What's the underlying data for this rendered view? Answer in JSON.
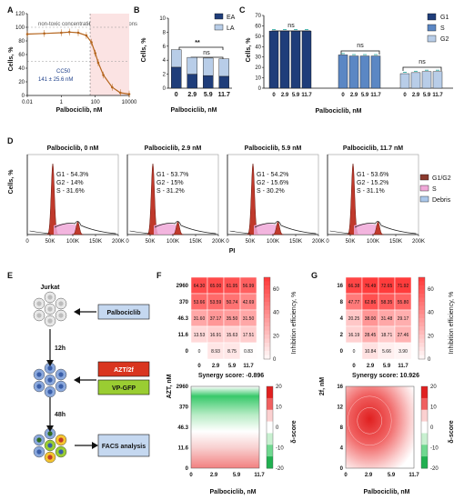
{
  "panels": {
    "A": {
      "letter": "A",
      "ylabel": "Cells, %",
      "xlabel": "Palbociclib, nM",
      "yticks": [
        "0",
        "20",
        "40",
        "60",
        "80",
        "100",
        "120"
      ],
      "xticks": [
        "0.01",
        "1",
        "100",
        "10000"
      ],
      "region_left": "non-toxic concentrations",
      "region_right": "toxic concentrations",
      "cc50_label": "CC50",
      "cc50_value": "141 ± 25.6 nM"
    },
    "B": {
      "letter": "B",
      "ylabel": "Cells, %",
      "xlabel": "Palbociclib, nM",
      "yticks": [
        "0",
        "2",
        "4",
        "6",
        "8",
        "10"
      ],
      "legend": [
        "EA",
        "LA"
      ],
      "sig_top": "**",
      "sig_bottom": "ns"
    },
    "C": {
      "letter": "C",
      "ylabel": "Cells, %",
      "xlabel": "Palbociclib, nM",
      "yticks": [
        "0",
        "10",
        "20",
        "30",
        "40",
        "50",
        "60",
        "70"
      ],
      "legend": [
        "G1",
        "S",
        "G2"
      ],
      "ns": "ns"
    },
    "D": {
      "letter": "D",
      "ylabel": "Cells, %",
      "xlabel": "PI",
      "xticks": [
        "0",
        "50K",
        "100K",
        "150K",
        "200K"
      ],
      "legend": [
        "G1/G2",
        "S",
        "Debris"
      ],
      "subpanels": [
        {
          "title": "Palbociclib, 0 nM",
          "g1": "G1 - 54.3%",
          "g2": "G2 - 14%",
          "s": "S - 31.6%"
        },
        {
          "title": "Palbociclib, 2.9 nM",
          "g1": "G1 - 53.7%",
          "g2": "G2 - 15%",
          "s": "S - 31.2%"
        },
        {
          "title": "Palbociclib, 5.9 nM",
          "g1": "G1 - 54.2%",
          "g2": "G2 - 15.6%",
          "s": "S - 30.2%"
        },
        {
          "title": "Palbociclib, 11.7 nM",
          "g1": "G1 - 53.6%",
          "g2": "G2 - 15.2%",
          "s": "S - 31.1%"
        }
      ]
    },
    "E": {
      "letter": "E",
      "cells_label": "Jurkat",
      "drug": "Palbociclib",
      "t1": "12h",
      "drug2": "AZT/2f",
      "reporter": "VP-GFP",
      "t2": "48h",
      "readout": "FACS analysis"
    },
    "F": {
      "letter": "F",
      "ylabel": "AZT, nM",
      "xlabel": "Palbociclib, nM",
      "colorbar_label": "Inhibition efficiency, %",
      "colorbar_ticks": [
        "0",
        "20",
        "40",
        "60"
      ],
      "synergy": "Synergy score: -0.896",
      "delta_label": "δ-score",
      "delta_ticks": [
        "20",
        "10",
        "0",
        "-10",
        "-20"
      ]
    },
    "G": {
      "letter": "G",
      "ylabel": "2f, nM",
      "xlabel": "Palbociclib, nM",
      "colorbar_label": "Inhibition efficiency, %",
      "colorbar_ticks": [
        "0",
        "20",
        "40",
        "60"
      ],
      "synergy": "Synergy score: 10.926",
      "delta_label": "δ-score",
      "delta_ticks": [
        "20",
        "10",
        "0",
        "-10",
        "-20"
      ],
      "surface_yticks": [
        "16",
        "12",
        "8",
        "4",
        "0"
      ]
    }
  },
  "chart_data": [
    {
      "type": "line",
      "panel": "A",
      "x": [
        0.01,
        0.1,
        1,
        3,
        10,
        30,
        60,
        100,
        150,
        300,
        1000,
        3000,
        10000
      ],
      "y": [
        90,
        91,
        92,
        93,
        92,
        88,
        78,
        62,
        48,
        30,
        12,
        4,
        2
      ],
      "xscale": "log",
      "ylim": [
        0,
        120
      ],
      "hlines": [
        50,
        100
      ],
      "vline": 50
    },
    {
      "type": "bar",
      "panel": "B",
      "categories": [
        "0",
        "2.9",
        "5.9",
        "11.7"
      ],
      "series": [
        {
          "name": "EA",
          "values": [
            3.0,
            2.0,
            1.8,
            1.7
          ],
          "color": "#1f3d7a"
        },
        {
          "name": "LA",
          "values": [
            2.5,
            2.4,
            2.5,
            2.5
          ],
          "color": "#b8cde8"
        }
      ],
      "stacked": true,
      "ylim": [
        0,
        10
      ]
    },
    {
      "type": "bar",
      "panel": "C",
      "groups": [
        "G1",
        "S",
        "G2"
      ],
      "categories": [
        "0",
        "2.9",
        "5.9",
        "11.7"
      ],
      "series": [
        {
          "name": "G1",
          "values": [
            55,
            55,
            55,
            55
          ],
          "color": "#1f3d7a"
        },
        {
          "name": "S",
          "values": [
            32,
            31,
            31,
            31
          ],
          "color": "#5b87c4"
        },
        {
          "name": "G2",
          "values": [
            14,
            15,
            16,
            16
          ],
          "color": "#b8cde8"
        }
      ],
      "ylim": [
        0,
        70
      ]
    },
    {
      "type": "table",
      "panel": "F",
      "rows": [
        "2960",
        "370",
        "46.3",
        "11.6",
        "0"
      ],
      "cols": [
        "0",
        "2.9",
        "5.9",
        "11.7"
      ],
      "values": [
        [
          "64.30",
          "65.00",
          "61.95",
          "56.99"
        ],
        [
          "53.66",
          "53.59",
          "50.74",
          "42.69"
        ],
        [
          "31.60",
          "37.17",
          "35.50",
          "31.50"
        ],
        [
          "13.53",
          "16.91",
          "15.63",
          "17.51"
        ],
        [
          "0",
          "8.93",
          "8.75",
          "0.83"
        ]
      ]
    },
    {
      "type": "table",
      "panel": "G",
      "rows": [
        "16",
        "8",
        "4",
        "2",
        "0"
      ],
      "cols": [
        "0",
        "2.9",
        "5.9",
        "11.7"
      ],
      "values": [
        [
          "66.38",
          "76.49",
          "72.65",
          "71.92"
        ],
        [
          "47.77",
          "62.86",
          "58.35",
          "55.80"
        ],
        [
          "20.25",
          "38.00",
          "31.48",
          "29.17"
        ],
        [
          "16.19",
          "28.45",
          "18.71",
          "27.46"
        ],
        [
          "0",
          "10.84",
          "5.66",
          "3.90"
        ]
      ]
    }
  ]
}
